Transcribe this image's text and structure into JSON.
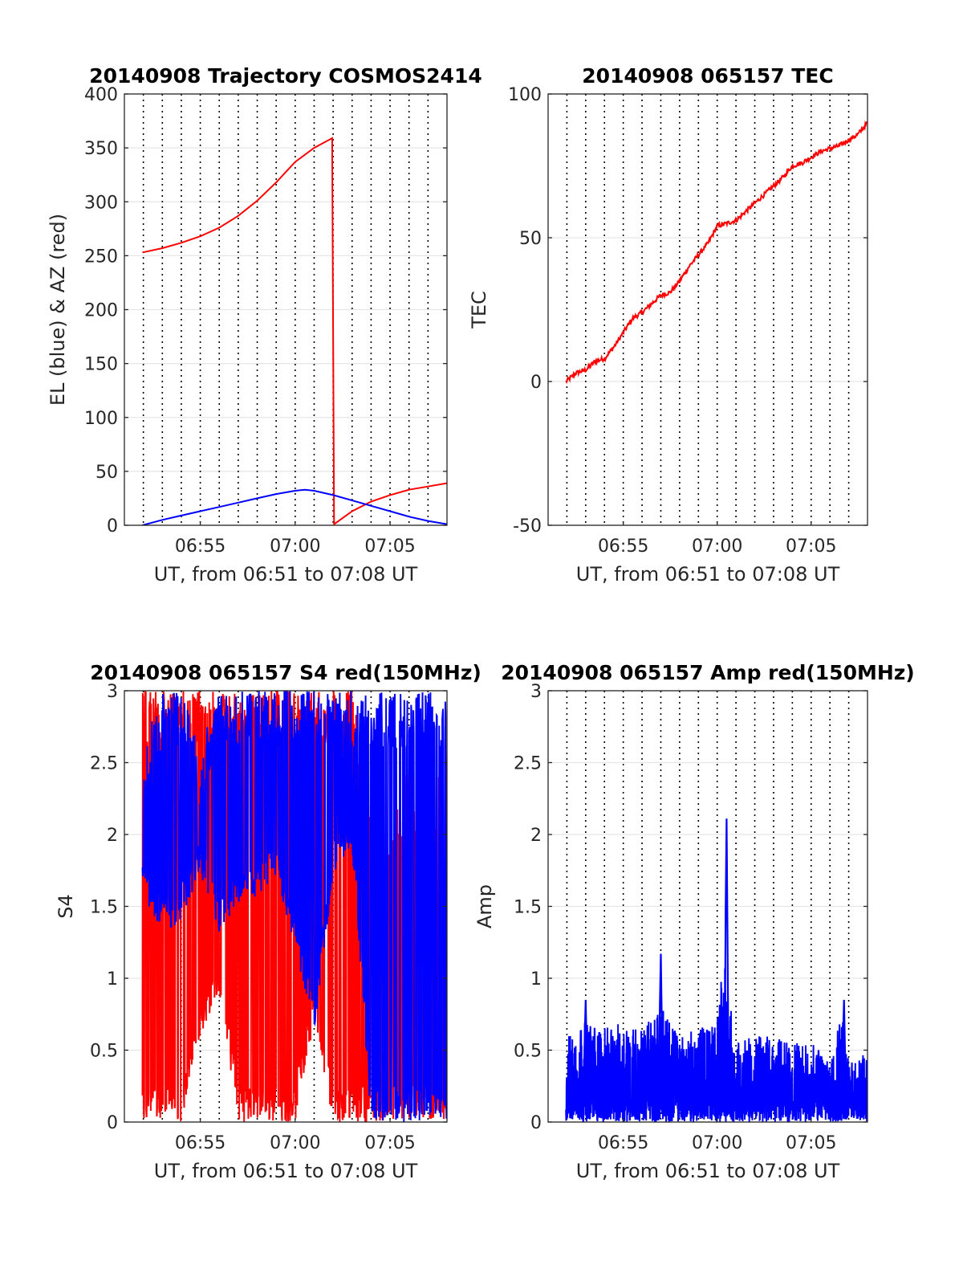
{
  "figure": {
    "panels": [
      "trajectory",
      "tec",
      "s4",
      "amp"
    ]
  },
  "chart_data": [
    {
      "id": "trajectory",
      "type": "line",
      "title": "20140908 Trajectory COSMOS2414",
      "xlabel": "UT, from 06:51 to 07:08 UT",
      "ylabel": "EL (blue) & AZ (red)",
      "xlim": [
        "06:51:00",
        "07:08:00"
      ],
      "ylim": [
        0,
        400
      ],
      "yticks": [
        0,
        50,
        100,
        150,
        200,
        250,
        300,
        350,
        400
      ],
      "xticks": [
        "06:55",
        "07:00",
        "07:05"
      ],
      "grid": true,
      "minute_guides": true,
      "series": [
        {
          "color": "#ff0000",
          "x": [
            "06:51:57",
            "06:53:00",
            "06:54:00",
            "06:55:00",
            "06:56:00",
            "06:57:00",
            "06:58:00",
            "06:59:00",
            "07:00:00",
            "07:01:00",
            "07:01:57",
            "07:02:03",
            "07:03:00",
            "07:04:00",
            "07:05:00",
            "07:06:00",
            "07:07:00",
            "07:08:00"
          ],
          "y": [
            253,
            257,
            262,
            268,
            276,
            287,
            301,
            318,
            337,
            350,
            359,
            1,
            13,
            22,
            28,
            33,
            36,
            39
          ]
        },
        {
          "color": "#0000ff",
          "x": [
            "06:51:57",
            "06:53:00",
            "06:54:00",
            "06:55:00",
            "06:56:00",
            "06:57:00",
            "06:58:00",
            "06:59:00",
            "07:00:00",
            "07:00:30",
            "07:01:00",
            "07:02:00",
            "07:03:00",
            "07:04:00",
            "07:05:00",
            "07:06:00",
            "07:07:00",
            "07:08:00"
          ],
          "y": [
            0,
            5,
            9,
            13,
            17,
            21,
            25,
            29,
            32,
            33,
            32,
            28,
            23,
            18,
            13,
            8,
            4,
            1
          ]
        }
      ]
    },
    {
      "id": "tec",
      "type": "line",
      "title": "20140908 065157 TEC",
      "xlabel": "UT, from 06:51 to 07:08 UT",
      "ylabel": "TEC",
      "xlim": [
        "06:51:00",
        "07:08:00"
      ],
      "ylim": [
        -50,
        100
      ],
      "yticks": [
        -50,
        0,
        50,
        100
      ],
      "xticks": [
        "06:55",
        "07:00",
        "07:05"
      ],
      "grid": true,
      "minute_guides": true,
      "series": [
        {
          "color": "#ff0000",
          "x": [
            "06:51:57",
            "06:52:30",
            "06:53:00",
            "06:53:30",
            "06:54:00",
            "06:54:30",
            "06:55:00",
            "06:55:30",
            "06:56:00",
            "06:56:30",
            "06:57:00",
            "06:57:30",
            "06:58:00",
            "06:58:30",
            "06:59:00",
            "06:59:30",
            "07:00:00",
            "07:00:30",
            "07:01:00",
            "07:01:30",
            "07:02:00",
            "07:02:30",
            "07:03:00",
            "07:03:30",
            "07:04:00",
            "07:04:30",
            "07:05:00",
            "07:05:30",
            "07:06:00",
            "07:06:30",
            "07:07:00",
            "07:07:30",
            "07:08:00"
          ],
          "y": [
            0,
            3,
            4,
            7,
            8,
            12,
            17,
            22,
            24,
            27,
            30,
            31,
            35,
            40,
            44,
            48,
            54,
            55,
            56,
            59,
            62,
            65,
            68,
            71,
            75,
            76,
            78,
            80,
            81,
            82,
            84,
            86,
            90
          ]
        }
      ]
    },
    {
      "id": "s4",
      "type": "line",
      "title": "20140908 065157 S4 red(150MHz)",
      "xlabel": "UT, from 06:51 to 07:08 UT",
      "ylabel": "S4",
      "xlim": [
        "06:51:00",
        "07:08:00"
      ],
      "ylim": [
        0,
        3
      ],
      "yticks": [
        0,
        0.5,
        1,
        1.5,
        2,
        2.5,
        3
      ],
      "ytick_labels": [
        "0",
        "0.5",
        "1",
        "1.5",
        "2",
        "2.5",
        "3"
      ],
      "xticks": [
        "06:55",
        "07:00",
        "07:05"
      ],
      "grid": true,
      "minute_guides": true,
      "series": [
        {
          "color": "#ff0000",
          "x": [
            "06:51:57",
            "06:53:00",
            "06:54:00",
            "06:55:00",
            "06:56:00",
            "06:57:00",
            "06:58:00",
            "06:59:00",
            "07:00:00",
            "07:01:00",
            "07:02:00",
            "07:03:00",
            "07:04:00",
            "07:05:00",
            "07:06:00",
            "07:07:00",
            "07:08:00"
          ],
          "y_low": [
            0,
            0,
            0,
            0.6,
            0.9,
            0,
            0,
            0,
            0,
            0.7,
            0,
            0,
            0,
            0,
            0,
            0,
            0
          ],
          "y_high": [
            3,
            3,
            3,
            3,
            3,
            3,
            3,
            3,
            3,
            3,
            3,
            3,
            2.4,
            2.0,
            2.5,
            2.2,
            2.6
          ]
        },
        {
          "color": "#0000ff",
          "x": [
            "06:51:57",
            "06:53:00",
            "06:54:00",
            "06:55:00",
            "06:56:00",
            "06:57:00",
            "06:58:00",
            "06:59:00",
            "07:00:00",
            "07:01:00",
            "07:02:00",
            "07:03:00",
            "07:04:00",
            "07:05:00",
            "07:06:00",
            "07:07:00",
            "07:08:00"
          ],
          "y_low": [
            1.6,
            1.3,
            1.4,
            1.7,
            1.3,
            1.5,
            1.5,
            1.7,
            1.2,
            0.6,
            1.7,
            1.9,
            0,
            0,
            0,
            0,
            0
          ],
          "y_high": [
            2.6,
            3,
            3,
            2.6,
            3,
            3,
            3,
            3,
            3,
            3,
            3,
            3,
            3,
            3,
            3,
            3,
            3
          ]
        }
      ]
    },
    {
      "id": "amp",
      "type": "line",
      "title": "20140908 065157 Amp red(150MHz)",
      "xlabel": "UT, from 06:51 to 07:08 UT",
      "ylabel": "Amp",
      "xlim": [
        "06:51:00",
        "07:08:00"
      ],
      "ylim": [
        0,
        3
      ],
      "yticks": [
        0,
        0.5,
        1,
        1.5,
        2,
        2.5,
        3
      ],
      "ytick_labels": [
        "0",
        "0.5",
        "1",
        "1.5",
        "2",
        "2.5",
        "3"
      ],
      "xticks": [
        "06:55",
        "07:00",
        "07:05"
      ],
      "grid": true,
      "minute_guides": true,
      "series": [
        {
          "color": "#0000ff",
          "x": [
            "06:51:57",
            "06:53:00",
            "06:54:00",
            "06:55:00",
            "06:56:00",
            "06:57:00",
            "06:58:00",
            "06:59:00",
            "07:00:00",
            "07:00:20",
            "07:01:00",
            "07:02:00",
            "07:03:00",
            "07:04:00",
            "07:05:00",
            "07:06:00",
            "07:06:40",
            "07:07:00",
            "07:08:00"
          ],
          "y_low": [
            0,
            0,
            0,
            0,
            0,
            0,
            0,
            0,
            0,
            0,
            0,
            0,
            0,
            0,
            0,
            0,
            0,
            0,
            0
          ],
          "y_high": [
            0.6,
            0.7,
            0.65,
            0.7,
            0.65,
            0.8,
            0.6,
            0.65,
            0.7,
            1.15,
            0.55,
            0.6,
            0.6,
            0.55,
            0.55,
            0.45,
            0.85,
            0.4,
            0.5
          ],
          "peaks": [
            [
              "06:57:00",
              1.17
            ],
            [
              "07:00:30",
              2.11
            ],
            [
              "06:53:00",
              0.85
            ],
            [
              "07:06:45",
              0.85
            ]
          ]
        }
      ]
    }
  ]
}
